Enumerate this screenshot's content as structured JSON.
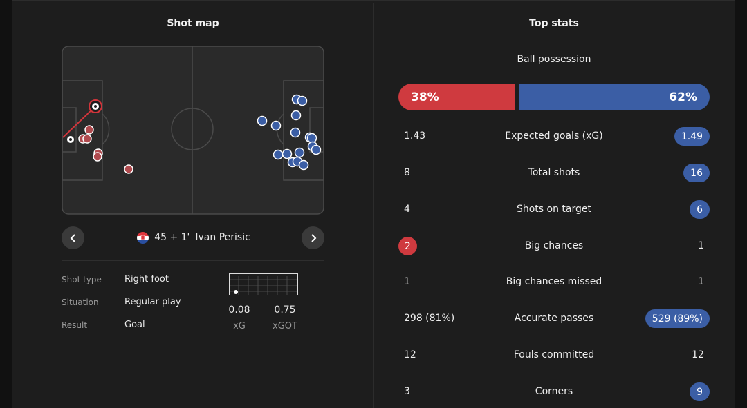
{
  "shot_map": {
    "title": "Shot map",
    "caption_time": "45 + 1'",
    "caption_player": "Ivan Perisic",
    "details": [
      {
        "label": "Shot type",
        "value": "Right foot"
      },
      {
        "label": "Situation",
        "value": "Regular play"
      },
      {
        "label": "Result",
        "value": "Goal"
      }
    ],
    "metrics": [
      {
        "value": "0.08",
        "label": "xG"
      },
      {
        "value": "0.75",
        "label": "xGOT"
      }
    ]
  },
  "top_stats": {
    "title": "Top stats",
    "possession_label": "Ball possession",
    "possession_home": "38%",
    "possession_away": "62%",
    "rows": [
      {
        "label": "Expected goals (xG)",
        "home": "1.43",
        "away": "1.49",
        "highlight": "away"
      },
      {
        "label": "Total shots",
        "home": "8",
        "away": "16",
        "highlight": "away"
      },
      {
        "label": "Shots on target",
        "home": "4",
        "away": "6",
        "highlight": "away"
      },
      {
        "label": "Big chances",
        "home": "2",
        "away": "1",
        "highlight": "home"
      },
      {
        "label": "Big chances missed",
        "home": "1",
        "away": "1",
        "highlight": "none"
      },
      {
        "label": "Accurate passes",
        "home": "298 (81%)",
        "away": "529 (89%)",
        "highlight": "away"
      },
      {
        "label": "Fouls committed",
        "home": "12",
        "away": "12",
        "highlight": "none"
      },
      {
        "label": "Corners",
        "home": "3",
        "away": "9",
        "highlight": "away"
      }
    ]
  },
  "colors": {
    "home": "#cf3a3f",
    "away": "#3b5ea5",
    "panel": "#1d1d1d"
  },
  "icons": {
    "prev": "chevron-left-icon",
    "next": "chevron-right-icon",
    "flag": "croatia-flag-icon",
    "ball": "football-icon"
  }
}
